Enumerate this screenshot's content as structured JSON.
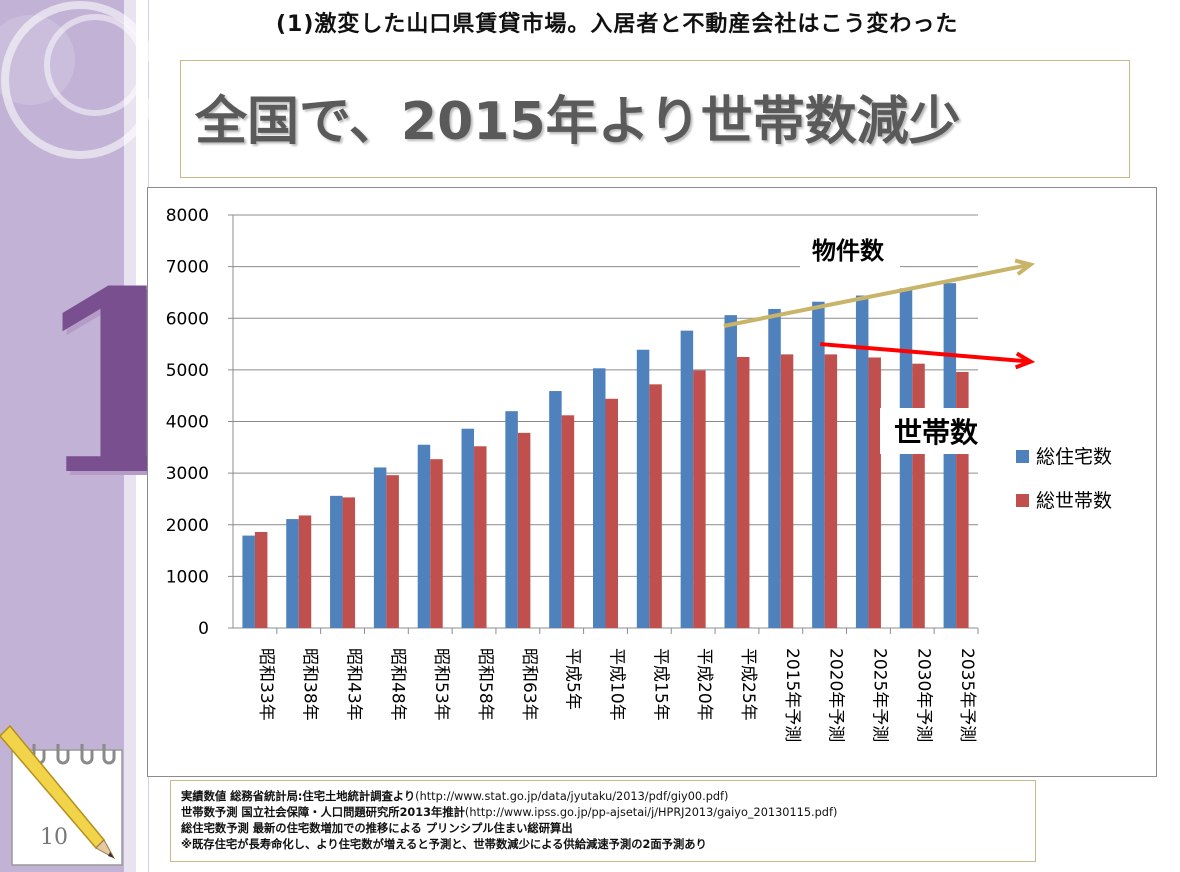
{
  "slide": {
    "subtitle": "(1)激変した山口県賃貸市場。入居者と不動産会社はこう変わった",
    "title": "全国で、2015年より世帯数減少",
    "section_number": "1",
    "page_number": "10"
  },
  "chart_data": {
    "type": "bar",
    "categories": [
      "昭和33年",
      "昭和38年",
      "昭和43年",
      "昭和48年",
      "昭和53年",
      "昭和58年",
      "昭和63年",
      "平成5年",
      "平成10年",
      "平成15年",
      "平成20年",
      "平成25年",
      "2015年予測",
      "2020年予測",
      "2025年予測",
      "2030年予測",
      "2035年予測"
    ],
    "series": [
      {
        "name": "総住宅数",
        "color": "#4f81bd",
        "values": [
          1790,
          2110,
          2560,
          3110,
          3550,
          3860,
          4200,
          4590,
          5030,
          5390,
          5760,
          6060,
          6180,
          6320,
          6440,
          6580,
          6680
        ]
      },
      {
        "name": "総世帯数",
        "color": "#c0504d",
        "values": [
          1860,
          2180,
          2530,
          2960,
          3270,
          3520,
          3780,
          4120,
          4440,
          4720,
          4990,
          5250,
          5300,
          5300,
          5240,
          5120,
          4960
        ]
      }
    ],
    "ylim": [
      0,
      8000
    ],
    "yticks": [
      0,
      1000,
      2000,
      3000,
      4000,
      5000,
      6000,
      7000,
      8000
    ],
    "grid": true,
    "legend_position": "right",
    "annotations": {
      "properties_label": "物件数",
      "households_label": "世帯数",
      "properties_arrow_color": "#c8b56a",
      "households_arrow_color": "#ff0000"
    }
  },
  "sources": [
    {
      "text": "実績数値 総務省統計局:住宅土地統計調査より",
      "url": "(http://www.stat.go.jp/data/jyutaku/2013/pdf/giy00.pdf)"
    },
    {
      "text": "世帯数予測 国立社会保障・人口問題研究所2013年推計",
      "url": "(http://www.ipss.go.jp/pp-ajsetai/j/HPRJ2013/gaiyo_20130115.pdf)"
    },
    {
      "text": "総住宅数予測 最新の住宅数増加での推移による プリンシプル住まい総研算出",
      "url": ""
    },
    {
      "text": "※既存住宅が長寿命化し、より住宅数が増えると予測と、世帯数減少による供給減速予測の2面予測あり",
      "url": ""
    }
  ]
}
